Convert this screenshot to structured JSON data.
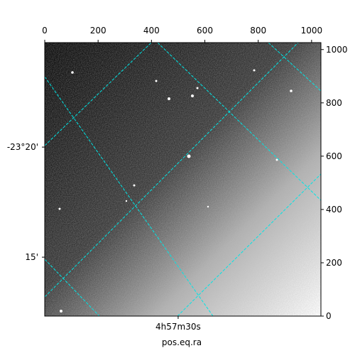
{
  "chart_data": {
    "type": "image",
    "x_label": "pos.eq.ra",
    "xlim": [
      0,
      1035
    ],
    "ylim": [
      0,
      1026
    ],
    "xticks": [
      0,
      200,
      400,
      600,
      800,
      1000
    ],
    "yticks": [
      0,
      200,
      400,
      600,
      800,
      1000
    ],
    "left_ticks": [
      {
        "value": 634,
        "label": "-23°20'"
      },
      {
        "value": 221,
        "label": "15'"
      }
    ],
    "bottom_ticks": [
      {
        "value": 500,
        "label": "4h57m30s"
      }
    ],
    "grid_color": "#00e5e5"
  }
}
